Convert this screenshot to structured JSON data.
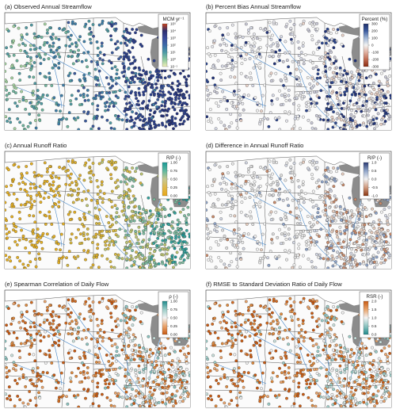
{
  "figure": {
    "panels": [
      {
        "id": "a",
        "title": "(a) Observed Annual Streamflow",
        "legend": {
          "title": "MCM yr⁻¹",
          "ticks": [
            "10⁵",
            "10⁴",
            "10³",
            "10²",
            "10¹",
            "10⁰",
            "10⁻¹"
          ],
          "colors": [
            "#c8401a",
            "#2e2f6e",
            "#3a4a9a",
            "#3c6aa8",
            "#4c9aa6",
            "#8ec9a0",
            "#f0f0b8"
          ]
        },
        "palette": [
          "#22307a",
          "#2b3f8c",
          "#3a5a9e",
          "#3e7ea8",
          "#4f9aa2",
          "#6fb59e",
          "#a3d0a0"
        ],
        "eastern_bias": "dark"
      },
      {
        "id": "b",
        "title": "(b) Percent Bias Annual Streamflow",
        "legend": {
          "title": "Percent (%)",
          "ticks": [
            "300",
            "200",
            "100",
            "0",
            "-100",
            "-200",
            "-300"
          ],
          "colors": [
            "#1f2f6b",
            "#3a5a9e",
            "#9fb6d6",
            "#f2f2f2",
            "#e0b0a0",
            "#c06a50",
            "#8a2a10"
          ]
        },
        "palette": [
          "#f4f4f4",
          "#e8e8ee",
          "#d8dbe8",
          "#c9c9d6",
          "#e9d2c8",
          "#20327a",
          "#2c468f"
        ],
        "eastern_bias": "light"
      },
      {
        "id": "c",
        "title": "(c) Annual Runoff Ratio",
        "legend": {
          "title": "R/P (-)",
          "ticks": [
            "1.00",
            "0.75",
            "0.50",
            "0.25",
            "0.00"
          ],
          "colors": [
            "#1a9a96",
            "#5fb8a0",
            "#c8c890",
            "#e0b84a",
            "#e8a81a"
          ]
        },
        "palette": [
          "#e6b022",
          "#dfae2a",
          "#d6b840",
          "#bcc470",
          "#7fbca0",
          "#34a39e",
          "#1a9896"
        ],
        "eastern_bias": "teal"
      },
      {
        "id": "d",
        "title": "(d) Difference in Annual Runoff Ratio",
        "legend": {
          "title": "R/P (-)",
          "ticks": [
            "1.0",
            "0.5",
            "0.0",
            "-0.5",
            "-1.0"
          ],
          "colors": [
            "#2a3a74",
            "#8fa4c8",
            "#f2f2f2",
            "#d09a7e",
            "#8a3510"
          ]
        },
        "palette": [
          "#f4f4f4",
          "#eaeaea",
          "#dedede",
          "#d2d6e2",
          "#e6cdbf",
          "#c98a6a",
          "#8fa4c8"
        ],
        "eastern_bias": "light"
      },
      {
        "id": "e",
        "title": "(e) Spearman Correlation of Daily Flow",
        "legend": {
          "title": "ρ (-)",
          "ticks": [
            "1.00",
            "0.75",
            "0.50",
            "0.25",
            "0.00"
          ],
          "colors": [
            "#1f8a8c",
            "#9ccdc8",
            "#f4f4f4",
            "#e9a46c",
            "#c85a12"
          ]
        },
        "palette": [
          "#c85a12",
          "#d26a1e",
          "#de8a3e",
          "#e9a46c",
          "#f2f2f2",
          "#c9e0dc",
          "#8cc4c0"
        ],
        "eastern_bias": "light"
      },
      {
        "id": "f",
        "title": "(f) RMSE to Standard Deviation Ratio of Daily Flow",
        "legend": {
          "title": "RSR (-)",
          "ticks": [
            "2.0",
            "1.5",
            "1.0",
            "0.5",
            "0.0"
          ],
          "colors": [
            "#c85a12",
            "#e9a46c",
            "#f4f4f4",
            "#8cc4c0",
            "#1f8a8c"
          ]
        },
        "palette": [
          "#c85a12",
          "#d46a20",
          "#de8a3e",
          "#e9a46c",
          "#f2f2f2",
          "#c9e0dc",
          "#9ccdc8"
        ],
        "eastern_bias": "light"
      }
    ]
  }
}
